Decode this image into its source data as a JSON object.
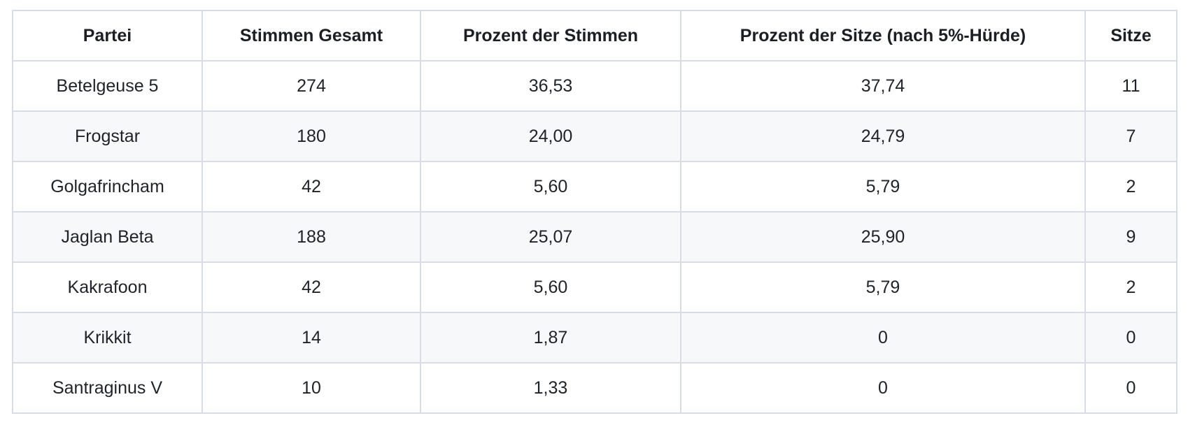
{
  "table": {
    "columns": [
      "Partei",
      "Stimmen Gesamt",
      "Prozent der Stimmen",
      "Prozent der Sitze (nach 5%-Hürde)",
      "Sitze"
    ],
    "rows": [
      [
        "Betelgeuse 5",
        "274",
        "36,53",
        "37,74",
        "11"
      ],
      [
        "Frogstar",
        "180",
        "24,00",
        "24,79",
        "7"
      ],
      [
        "Golgafrincham",
        "42",
        "5,60",
        "5,79",
        "2"
      ],
      [
        "Jaglan Beta",
        "188",
        "25,07",
        "25,90",
        "9"
      ],
      [
        "Kakrafoon",
        "42",
        "5,60",
        "5,79",
        "2"
      ],
      [
        "Krikkit",
        "14",
        "1,87",
        "0",
        "0"
      ],
      [
        "Santraginus V",
        "10",
        "1,33",
        "0",
        "0"
      ]
    ],
    "colors": {
      "zebra_stripe": "#f6f8fa",
      "border": "#d9dde3",
      "text": "#1f2328"
    }
  }
}
